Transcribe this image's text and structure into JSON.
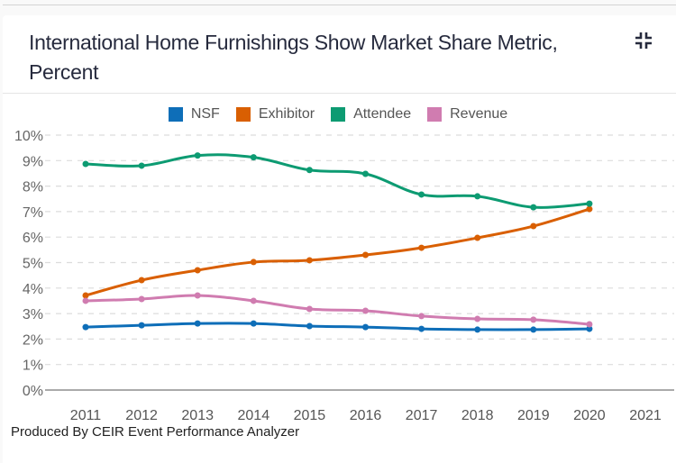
{
  "header": {
    "title": "International Home Furnishings Show Market Share Metric, Percent",
    "collapse_icon": "collapse-icon"
  },
  "footer": {
    "text": "Produced By CEIR Event Performance Analyzer"
  },
  "chart_data": {
    "type": "line",
    "title": "International Home Furnishings Show Market Share Metric, Percent",
    "xlabel": "",
    "ylabel": "",
    "categories": [
      "2011",
      "2012",
      "2013",
      "2014",
      "2015",
      "2016",
      "2017",
      "2018",
      "2019",
      "2020",
      "2021"
    ],
    "ylim": [
      0,
      10
    ],
    "yticks": [
      "0%",
      "1%",
      "2%",
      "3%",
      "4%",
      "5%",
      "6%",
      "7%",
      "8%",
      "9%",
      "10%"
    ],
    "grid": true,
    "legend_position": "top-center",
    "series": [
      {
        "name": "NSF",
        "color": "#0e6eb8",
        "values": [
          2.47,
          2.54,
          2.61,
          2.61,
          2.51,
          2.47,
          2.4,
          2.37,
          2.37,
          2.4,
          null
        ]
      },
      {
        "name": "Exhibitor",
        "color": "#d95f02",
        "values": [
          3.71,
          4.31,
          4.7,
          5.02,
          5.09,
          5.3,
          5.58,
          5.97,
          6.43,
          7.1,
          null
        ]
      },
      {
        "name": "Attendee",
        "color": "#0d9b72",
        "values": [
          8.87,
          8.8,
          9.2,
          9.13,
          8.63,
          8.48,
          7.67,
          7.6,
          7.17,
          7.31,
          null
        ]
      },
      {
        "name": "Revenue",
        "color": "#d07cb0",
        "values": [
          3.5,
          3.57,
          3.71,
          3.5,
          3.18,
          3.11,
          2.9,
          2.79,
          2.76,
          2.58,
          null
        ]
      }
    ]
  }
}
